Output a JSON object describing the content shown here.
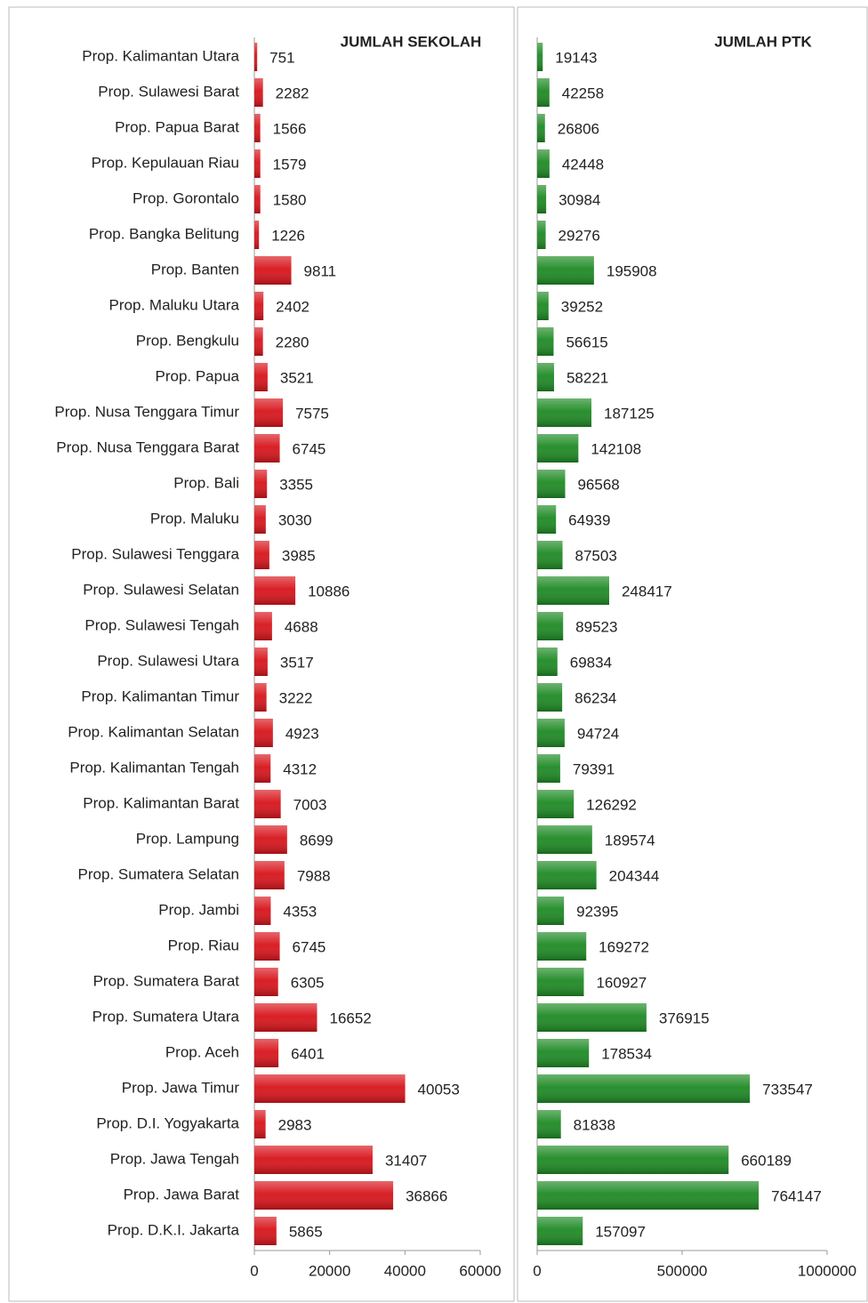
{
  "chart_data": [
    {
      "type": "hbar",
      "title": "JUMLAH SEKOLAH",
      "color": "#d8141b",
      "categories": [
        "Prop. Kalimantan Utara",
        "Prop. Sulawesi Barat",
        "Prop. Papua Barat",
        "Prop. Kepulauan Riau",
        "Prop. Gorontalo",
        "Prop. Bangka Belitung",
        "Prop. Banten",
        "Prop. Maluku Utara",
        "Prop. Bengkulu",
        "Prop. Papua",
        "Prop. Nusa Tenggara Timur",
        "Prop. Nusa Tenggara Barat",
        "Prop. Bali",
        "Prop. Maluku",
        "Prop. Sulawesi Tenggara",
        "Prop. Sulawesi Selatan",
        "Prop. Sulawesi Tengah",
        "Prop. Sulawesi Utara",
        "Prop. Kalimantan Timur",
        "Prop. Kalimantan Selatan",
        "Prop. Kalimantan Tengah",
        "Prop. Kalimantan Barat",
        "Prop. Lampung",
        "Prop. Sumatera Selatan",
        "Prop. Jambi",
        "Prop. Riau",
        "Prop. Sumatera Barat",
        "Prop. Sumatera Utara",
        "Prop. Aceh",
        "Prop. Jawa Timur",
        "Prop. D.I. Yogyakarta",
        "Prop. Jawa Tengah",
        "Prop. Jawa Barat",
        "Prop. D.K.I. Jakarta"
      ],
      "values": [
        751,
        2282,
        1566,
        1579,
        1580,
        1226,
        9811,
        2402,
        2280,
        3521,
        7575,
        6745,
        3355,
        3030,
        3985,
        10886,
        4688,
        3517,
        3222,
        4923,
        4312,
        7003,
        8699,
        7988,
        4353,
        6745,
        6305,
        16652,
        6401,
        40053,
        2983,
        31407,
        36866,
        5865
      ],
      "xlim": [
        0,
        60000
      ],
      "xticks": [
        0,
        20000,
        40000,
        60000
      ]
    },
    {
      "type": "hbar",
      "title": "JUMLAH PTK",
      "color": "#1e8a24",
      "values": [
        19143,
        42258,
        26806,
        42448,
        30984,
        29276,
        195908,
        39252,
        56615,
        58221,
        187125,
        142108,
        96568,
        64939,
        87503,
        248417,
        89523,
        69834,
        86234,
        94724,
        79391,
        126292,
        189574,
        204344,
        92395,
        169272,
        160927,
        376915,
        178534,
        733547,
        81838,
        660189,
        764147,
        157097
      ],
      "xlim": [
        0,
        1000000
      ],
      "xticks": [
        0,
        500000,
        1000000
      ]
    }
  ]
}
